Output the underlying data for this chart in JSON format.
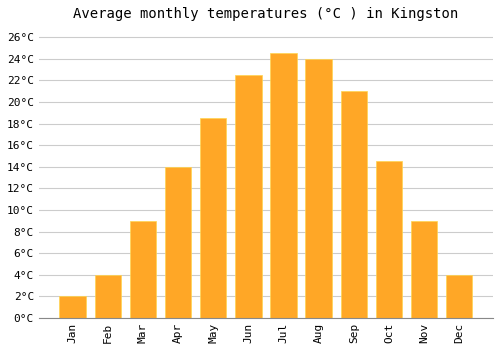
{
  "title": "Average monthly temperatures (°C ) in Kingston",
  "months": [
    "Jan",
    "Feb",
    "Mar",
    "Apr",
    "May",
    "Jun",
    "Jul",
    "Aug",
    "Sep",
    "Oct",
    "Nov",
    "Dec"
  ],
  "values": [
    2,
    4,
    9,
    14,
    18.5,
    22.5,
    24.5,
    24,
    21,
    14.5,
    9,
    4
  ],
  "bar_color": "#FFA726",
  "bar_edge_color": "#FFD54F",
  "background_color": "#FFFFFF",
  "grid_color": "#CCCCCC",
  "ylim": [
    0,
    27
  ],
  "yticks": [
    0,
    2,
    4,
    6,
    8,
    10,
    12,
    14,
    16,
    18,
    20,
    22,
    24,
    26
  ],
  "title_fontsize": 10,
  "tick_fontsize": 8,
  "title_font": "monospace",
  "bar_width": 0.75,
  "figsize": [
    5.0,
    3.5
  ],
  "dpi": 100
}
